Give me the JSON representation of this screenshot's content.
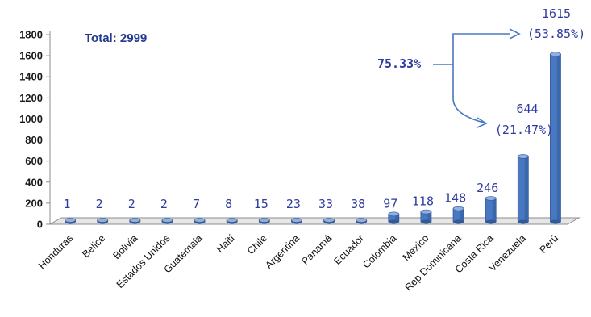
{
  "total": "Total: 2999",
  "annotation": "75.33%",
  "colors": {
    "bar": "#4a78c0",
    "bar_dark": "#2f5a9c",
    "bar_top": "#8fb0e0",
    "label": "#2e3a9e",
    "axis": "#8c8c8c"
  },
  "chart_data": {
    "type": "bar",
    "categories": [
      "Honduras",
      "Belice",
      "Bolivia",
      "Estados Unidos",
      "Guatemala",
      "Haití",
      "Chile",
      "Argentina",
      "Panamá",
      "Ecuador",
      "Colombia",
      "México",
      "Rep Dominicana",
      "Costa Rica",
      "Venezuela",
      "Perú"
    ],
    "values": [
      1,
      2,
      2,
      2,
      7,
      8,
      15,
      23,
      33,
      38,
      97,
      118,
      148,
      246,
      644,
      1615
    ],
    "data_labels": [
      "1",
      "2",
      "2",
      "2",
      "7",
      "8",
      "15",
      "23",
      "33",
      "38",
      "97",
      "118",
      "148",
      "246",
      "",
      ""
    ],
    "annotations": [
      {
        "value_text": "644",
        "pct_text": "(21.47%)"
      },
      {
        "value_text": "1615",
        "pct_text": "(53.85%)"
      }
    ],
    "ylim": [
      0,
      1800
    ],
    "yticks": [
      0,
      200,
      400,
      600,
      800,
      1000,
      1200,
      1400,
      1600,
      1800
    ],
    "grid": false,
    "legend": "none"
  }
}
